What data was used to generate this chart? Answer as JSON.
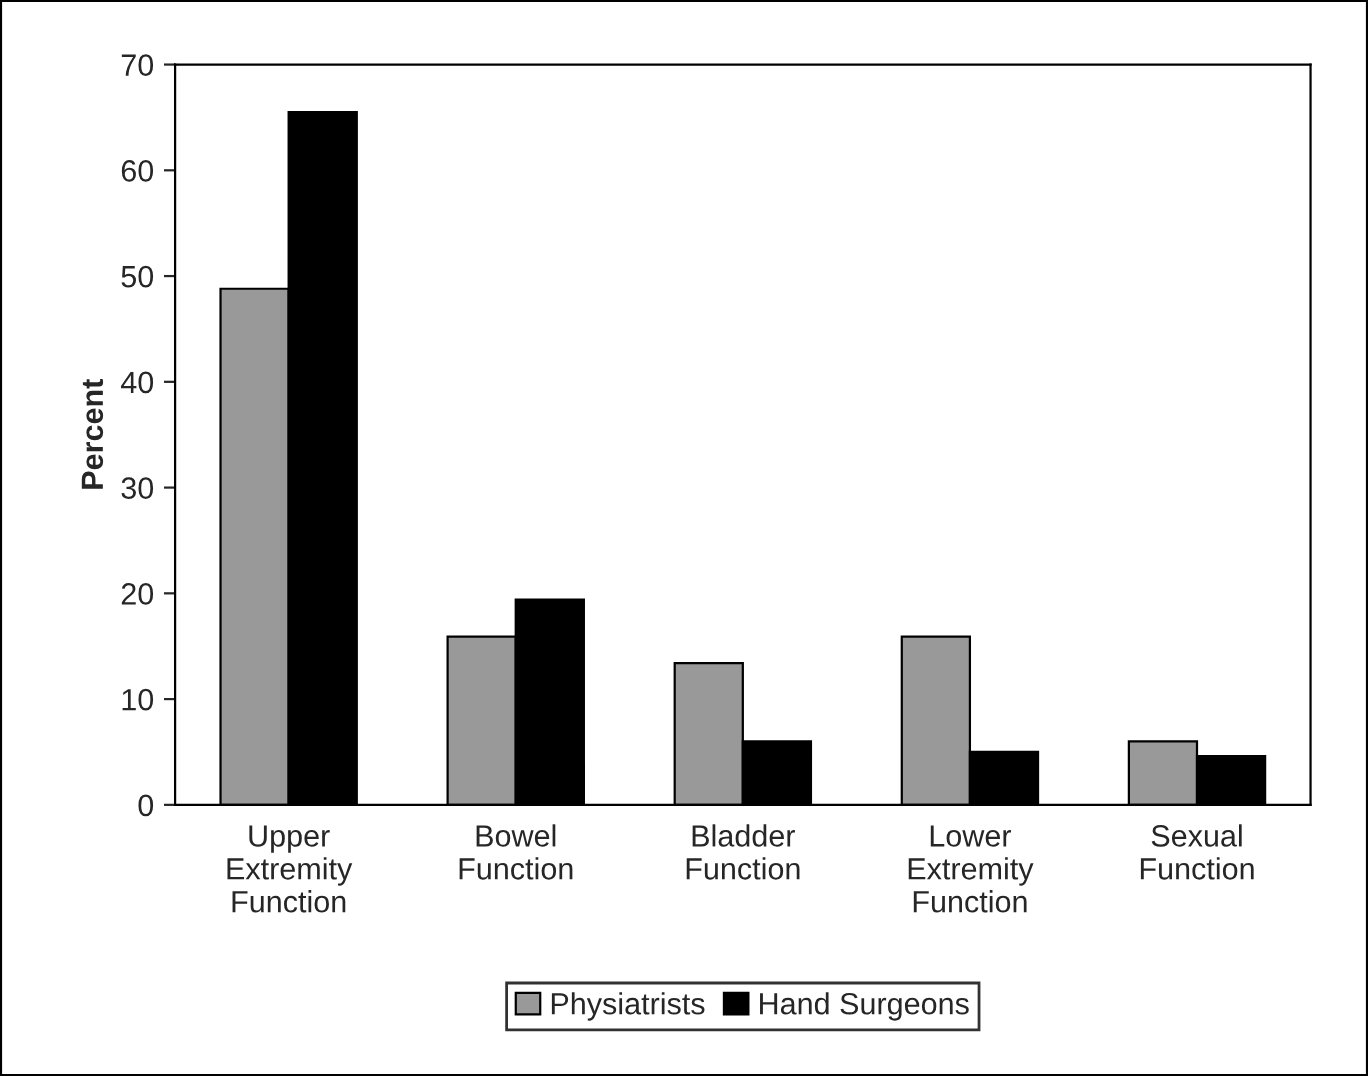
{
  "chart_data": {
    "type": "bar",
    "ylabel": "Percent",
    "categories": [
      "Upper\nExtremity\nFunction",
      "Bowel\nFunction",
      "Bladder\nFunction",
      "Lower\nExtremity\nFunction",
      "Sexual\nFunction"
    ],
    "series": [
      {
        "name": "Physiatrists",
        "color": "#999999",
        "values": [
          48.8,
          15.9,
          13.4,
          15.9,
          6.0
        ]
      },
      {
        "name": "Hand Surgeons",
        "color": "#000000",
        "values": [
          65.5,
          19.4,
          6.0,
          5.0,
          4.6
        ]
      }
    ],
    "ylim": [
      0,
      70
    ],
    "yticks": [
      0,
      10,
      20,
      30,
      40,
      50,
      60,
      70
    ],
    "grid": false,
    "legend": "bottom"
  }
}
